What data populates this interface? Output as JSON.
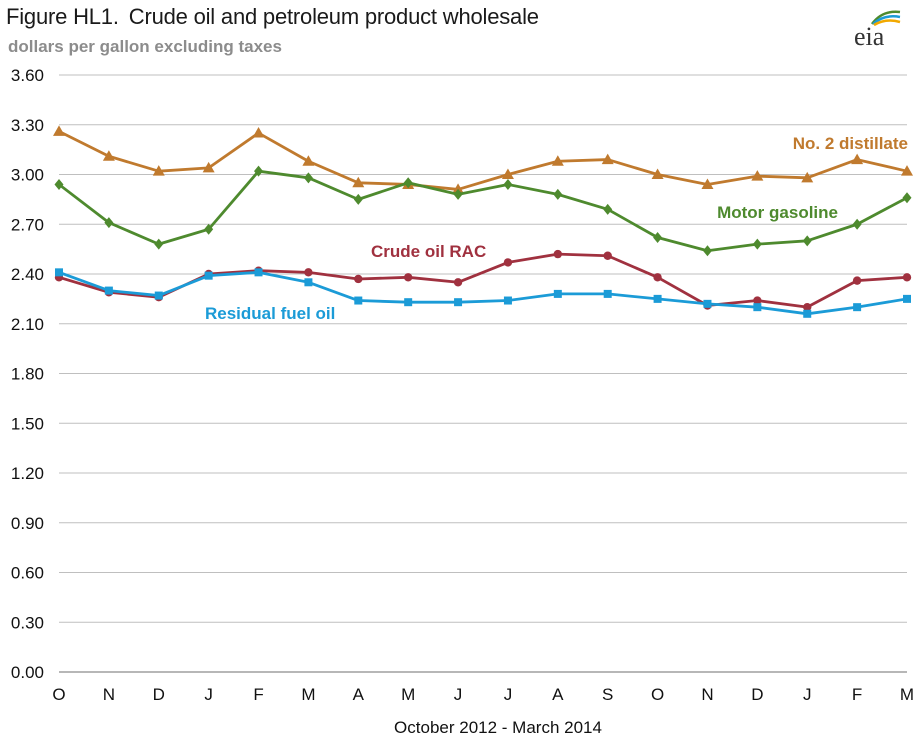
{
  "header": {
    "figure_id": "Figure HL1.",
    "title": "Crude oil and petroleum product wholesale",
    "subtitle": "dollars per gallon excluding taxes",
    "logo_text": "eia"
  },
  "colors": {
    "distillate": "#C07A2E",
    "gasoline": "#4E8A2E",
    "crude": "#A0313F",
    "residual": "#1B9BD7",
    "grid": "#bfbfbf",
    "axis": "#8c8c8c"
  },
  "chart_data": {
    "type": "line",
    "title": "Crude oil and petroleum product wholesale",
    "subtitle": "dollars per gallon excluding taxes",
    "xlabel": "October 2012 - March 2014",
    "ylabel": "",
    "ylim": [
      0,
      3.6
    ],
    "yticks": [
      "0.00",
      "0.30",
      "0.60",
      "0.90",
      "1.20",
      "1.50",
      "1.80",
      "2.10",
      "2.40",
      "2.70",
      "3.00",
      "3.30",
      "3.60"
    ],
    "categories": [
      "O",
      "N",
      "D",
      "J",
      "F",
      "M",
      "A",
      "M",
      "J",
      "J",
      "A",
      "S",
      "O",
      "N",
      "D",
      "J",
      "F",
      "M"
    ],
    "grid": true,
    "legend": "inline labels",
    "series": [
      {
        "name": "No. 2 distillate",
        "color": "#C07A2E",
        "marker": "triangle",
        "values": [
          3.26,
          3.11,
          3.02,
          3.04,
          3.25,
          3.08,
          2.95,
          2.94,
          2.91,
          3.0,
          3.08,
          3.09,
          3.0,
          2.94,
          2.99,
          2.98,
          3.09,
          3.02
        ]
      },
      {
        "name": "Motor gasoline",
        "color": "#4E8A2E",
        "marker": "diamond",
        "values": [
          2.94,
          2.71,
          2.58,
          2.67,
          3.02,
          2.98,
          2.85,
          2.95,
          2.88,
          2.94,
          2.88,
          2.79,
          2.62,
          2.54,
          2.58,
          2.6,
          2.7,
          2.86
        ]
      },
      {
        "name": "Crude oil RAC",
        "color": "#A0313F",
        "marker": "circle",
        "values": [
          2.38,
          2.29,
          2.26,
          2.4,
          2.42,
          2.41,
          2.37,
          2.38,
          2.35,
          2.47,
          2.52,
          2.51,
          2.38,
          2.21,
          2.24,
          2.2,
          2.36,
          2.38
        ]
      },
      {
        "name": "Residual fuel oil",
        "color": "#1B9BD7",
        "marker": "square",
        "values": [
          2.41,
          2.3,
          2.27,
          2.39,
          2.41,
          2.35,
          2.24,
          2.23,
          2.23,
          2.24,
          2.28,
          2.28,
          2.25,
          2.22,
          2.2,
          2.16,
          2.2,
          2.25
        ]
      }
    ]
  }
}
